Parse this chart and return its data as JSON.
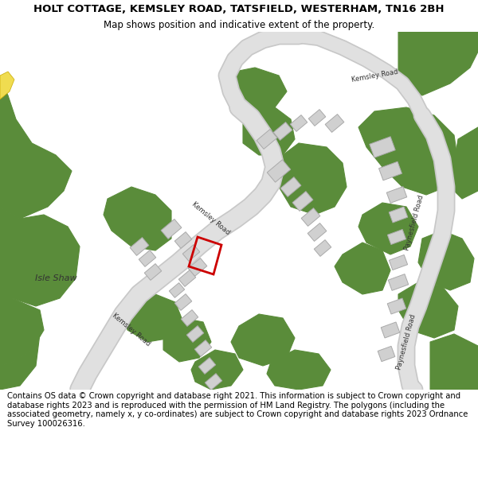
{
  "title": "HOLT COTTAGE, KEMSLEY ROAD, TATSFIELD, WESTERHAM, TN16 2BH",
  "subtitle": "Map shows position and indicative extent of the property.",
  "footer": "Contains OS data © Crown copyright and database right 2021. This information is subject to Crown copyright and database rights 2023 and is reproduced with the permission of HM Land Registry. The polygons (including the associated geometry, namely x, y co-ordinates) are subject to Crown copyright and database rights 2023 Ordnance Survey 100026316.",
  "bg_color": "#ffffff",
  "map_bg": "#ffffff",
  "green_color": "#5a8c3a",
  "road_color": "#e0e0e0",
  "building_color": "#d0d0d0",
  "building_outline": "#aaaaaa",
  "red_outline": "#cc0000",
  "yellow_color": "#f0dc50",
  "title_fontsize": 9.5,
  "subtitle_fontsize": 8.5,
  "footer_fontsize": 7.2
}
